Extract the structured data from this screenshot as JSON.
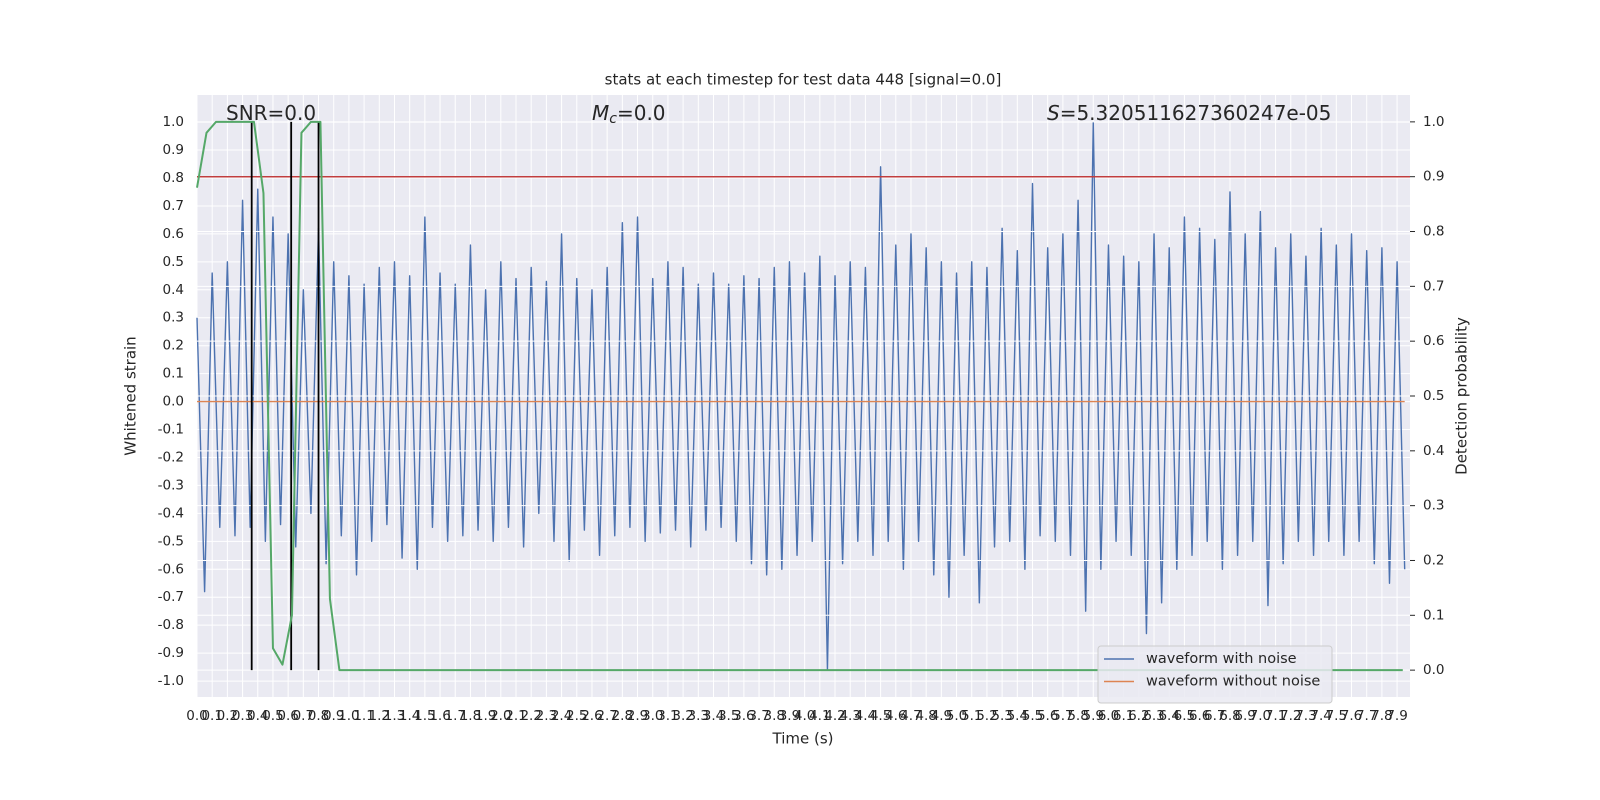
{
  "chart_data": {
    "type": "line",
    "title": "stats at each timestep for test data 448 [signal=0.0]",
    "xlabel": "Time (s)",
    "ylabel": "Whitened strain",
    "y2label": "Detection probability",
    "grid": true,
    "legend": "lower right",
    "xlim": [
      0,
      7.985
    ],
    "ylim": [
      -1.057,
      1.097
    ],
    "y2lim": [
      -0.049,
      1.049
    ],
    "xticks": [
      {
        "value": 0,
        "label": "0.0"
      },
      0.1,
      0.2,
      0.3,
      0.4,
      0.5,
      0.6,
      0.7,
      0.8,
      0.9,
      {
        "value": 1,
        "label": "1.0"
      },
      1.1,
      1.2,
      1.3,
      1.4,
      1.5,
      1.6,
      1.7,
      1.8,
      1.9,
      {
        "value": 2,
        "label": "2.0"
      },
      2.1,
      2.2,
      2.3,
      2.4,
      2.5,
      2.6,
      2.7,
      2.8,
      2.9,
      {
        "value": 3,
        "label": "3.0"
      },
      3.1,
      3.2,
      3.3,
      3.4,
      3.5,
      3.6,
      3.7,
      3.8,
      3.9,
      {
        "value": 4,
        "label": "4.0"
      },
      4.1,
      4.2,
      4.3,
      4.4,
      4.5,
      4.6,
      4.7,
      4.8,
      4.9,
      {
        "value": 5,
        "label": "5.0"
      },
      5.1,
      5.2,
      5.3,
      5.4,
      5.5,
      5.6,
      5.7,
      5.8,
      5.9,
      {
        "value": 6,
        "label": "6.0"
      },
      6.1,
      6.2,
      6.3,
      6.4,
      6.5,
      6.6,
      6.7,
      6.8,
      6.9,
      {
        "value": 7,
        "label": "7.0"
      },
      7.1,
      7.2,
      7.3,
      7.4,
      7.5,
      7.6,
      7.7,
      7.8,
      7.9
    ],
    "yticks": [
      {
        "value": -1,
        "label": "-1.0"
      },
      -0.9,
      -0.8,
      -0.7,
      -0.6,
      -0.5,
      -0.4,
      -0.3,
      -0.2,
      -0.1,
      {
        "value": 0,
        "label": "0.0"
      },
      0.1,
      0.2,
      0.3,
      0.4,
      0.5,
      0.6,
      0.7,
      0.8,
      0.9,
      {
        "value": 1,
        "label": "1.0"
      }
    ],
    "y2ticks": [
      {
        "value": 0,
        "label": "0.0"
      },
      0.1,
      0.2,
      0.3,
      0.4,
      0.5,
      0.6,
      0.7,
      0.8,
      0.9,
      {
        "value": 1,
        "label": "1.0"
      }
    ],
    "annotations": [
      {
        "text": "SNR=0.0"
      },
      {
        "symbol": "M",
        "subscript": "c",
        "text": "=0.0"
      },
      {
        "symbol": "S",
        "text": "=5.320511627360247e-05"
      }
    ],
    "series": [
      {
        "name": "waveform with noise",
        "color": "#4c72b0",
        "x": [
          0,
          0.05,
          0.1,
          0.15,
          0.2,
          0.25,
          0.3,
          0.35,
          0.4,
          0.45,
          0.5,
          0.55,
          0.6,
          0.65,
          0.7,
          0.75,
          0.8,
          0.85,
          0.9,
          0.95,
          1.0,
          1.05,
          1.1,
          1.15,
          1.2,
          1.25,
          1.3,
          1.35,
          1.4,
          1.45,
          1.5,
          1.55,
          1.6,
          1.65,
          1.7,
          1.75,
          1.8,
          1.85,
          1.9,
          1.95,
          2.0,
          2.05,
          2.1,
          2.15,
          2.2,
          2.25,
          2.3,
          2.35,
          2.4,
          2.45,
          2.5,
          2.55,
          2.6,
          2.65,
          2.7,
          2.75,
          2.8,
          2.85,
          2.9,
          2.95,
          3.0,
          3.05,
          3.1,
          3.15,
          3.2,
          3.25,
          3.3,
          3.35,
          3.4,
          3.45,
          3.5,
          3.55,
          3.6,
          3.65,
          3.7,
          3.75,
          3.8,
          3.85,
          3.9,
          3.95,
          4.0,
          4.05,
          4.1,
          4.15,
          4.2,
          4.25,
          4.3,
          4.35,
          4.4,
          4.45,
          4.5,
          4.55,
          4.6,
          4.65,
          4.7,
          4.75,
          4.8,
          4.85,
          4.9,
          4.95,
          5.0,
          5.05,
          5.1,
          5.15,
          5.2,
          5.25,
          5.3,
          5.35,
          5.4,
          5.45,
          5.5,
          5.55,
          5.6,
          5.65,
          5.7,
          5.75,
          5.8,
          5.85,
          5.9,
          5.95,
          6.0,
          6.05,
          6.1,
          6.15,
          6.2,
          6.25,
          6.3,
          6.35,
          6.4,
          6.45,
          6.5,
          6.55,
          6.6,
          6.65,
          6.7,
          6.75,
          6.8,
          6.85,
          6.9,
          6.95,
          7.0,
          7.05,
          7.1,
          7.15,
          7.2,
          7.25,
          7.3,
          7.35,
          7.4,
          7.45,
          7.5,
          7.55,
          7.6,
          7.65,
          7.7,
          7.75,
          7.8,
          7.85,
          7.9,
          7.95
        ],
        "values": [
          0.3,
          -0.68,
          0.46,
          -0.45,
          0.5,
          -0.48,
          0.72,
          -0.45,
          0.76,
          -0.5,
          0.66,
          -0.44,
          0.6,
          -0.52,
          0.4,
          -0.4,
          0.62,
          -0.58,
          0.5,
          -0.48,
          0.45,
          -0.62,
          0.42,
          -0.5,
          0.48,
          -0.44,
          0.5,
          -0.56,
          0.45,
          -0.6,
          0.66,
          -0.45,
          0.46,
          -0.5,
          0.42,
          -0.48,
          0.56,
          -0.46,
          0.4,
          -0.5,
          0.5,
          -0.45,
          0.44,
          -0.52,
          0.48,
          -0.4,
          0.43,
          -0.5,
          0.6,
          -0.57,
          0.44,
          -0.46,
          0.4,
          -0.55,
          0.48,
          -0.48,
          0.64,
          -0.45,
          0.66,
          -0.5,
          0.44,
          -0.47,
          0.5,
          -0.46,
          0.48,
          -0.52,
          0.42,
          -0.46,
          0.46,
          -0.45,
          0.42,
          -0.5,
          0.45,
          -0.58,
          0.44,
          -0.62,
          0.48,
          -0.6,
          0.5,
          -0.55,
          0.46,
          -0.5,
          0.52,
          -0.96,
          0.45,
          -0.58,
          0.5,
          -0.5,
          0.48,
          -0.55,
          0.84,
          -0.5,
          0.56,
          -0.6,
          0.6,
          -0.5,
          0.55,
          -0.62,
          0.5,
          -0.7,
          0.46,
          -0.55,
          0.5,
          -0.72,
          0.48,
          -0.52,
          0.62,
          -0.5,
          0.54,
          -0.6,
          0.78,
          -0.48,
          0.55,
          -0.5,
          0.6,
          -0.55,
          0.72,
          -0.75,
          1.0,
          -0.6,
          0.56,
          -0.5,
          0.52,
          -0.55,
          0.5,
          -0.83,
          0.6,
          -0.72,
          0.55,
          -0.6,
          0.66,
          -0.55,
          0.62,
          -0.5,
          0.58,
          -0.6,
          0.75,
          -0.55,
          0.6,
          -0.5,
          0.68,
          -0.73,
          0.55,
          -0.58,
          0.6,
          -0.5,
          0.52,
          -0.55,
          0.62,
          -0.5,
          0.56,
          -0.55,
          0.6,
          -0.5,
          0.54,
          -0.58,
          0.55,
          -0.65,
          0.5,
          -0.6
        ]
      },
      {
        "name": "waveform without noise",
        "color": "#dd8452",
        "x": [
          0,
          7.95
        ],
        "values": [
          0,
          0
        ]
      },
      {
        "axis": "y2",
        "color": "#55a868",
        "x": [
          0,
          0.0625,
          0.125,
          0.1875,
          0.25,
          0.3125,
          0.375,
          0.4375,
          0.5,
          0.5625,
          0.625,
          0.6875,
          0.75,
          0.8125,
          0.875,
          0.9375,
          7.9375
        ],
        "values": [
          0.88,
          0.98,
          1.0,
          1.0,
          1.0,
          1.0,
          1.0,
          0.87,
          0.04,
          0.01,
          0.1,
          0.98,
          1.0,
          1.0,
          0.13,
          0.0,
          0.0
        ]
      }
    ],
    "hlines": [
      {
        "value": 0.9,
        "axis": "y2",
        "color": "#c03d3e"
      }
    ],
    "vlines": {
      "color": "#000000",
      "x": [
        0.36,
        0.62,
        0.8
      ]
    }
  }
}
